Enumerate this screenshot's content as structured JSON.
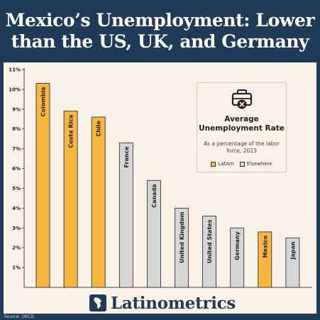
{
  "header": {
    "title": "Mexico’s Unemployment: Lower than the US, UK, and Germany"
  },
  "legend": {
    "title_line1": "Average",
    "title_line2": "Unemployment Rate",
    "subtitle": "As a percentage of the labor force, 2023",
    "items": [
      {
        "label": "LatAm",
        "color": "#f6b63f"
      },
      {
        "label": "Elsewhere",
        "color": "#d6d6d6"
      }
    ]
  },
  "brand": {
    "name": "Latinometrics"
  },
  "footer": {
    "source": "Source: OECD"
  },
  "chart_data": {
    "type": "bar",
    "y_ticks": [
      "1%",
      "2%",
      "3%",
      "4%",
      "5%",
      "6%",
      "7%",
      "8%",
      "9%",
      "10%",
      "11%"
    ],
    "ylim": [
      0,
      11
    ],
    "categories": [
      "Colombia",
      "Costa Rica",
      "Chile",
      "France",
      "Canada",
      "United Kingdom",
      "United States",
      "Germany",
      "Mexico",
      "Japan"
    ],
    "values": [
      10.3,
      8.9,
      8.6,
      7.3,
      5.4,
      4.0,
      3.6,
      3.0,
      2.8,
      2.5
    ],
    "group": [
      "LatAm",
      "LatAm",
      "LatAm",
      "Elsewhere",
      "Elsewhere",
      "Elsewhere",
      "Elsewhere",
      "Elsewhere",
      "LatAm",
      "Elsewhere"
    ],
    "colors": {
      "LatAm": "#f6b63f",
      "Elsewhere": "#d6d6d6"
    },
    "grid": false,
    "legend_position": "top-right"
  }
}
